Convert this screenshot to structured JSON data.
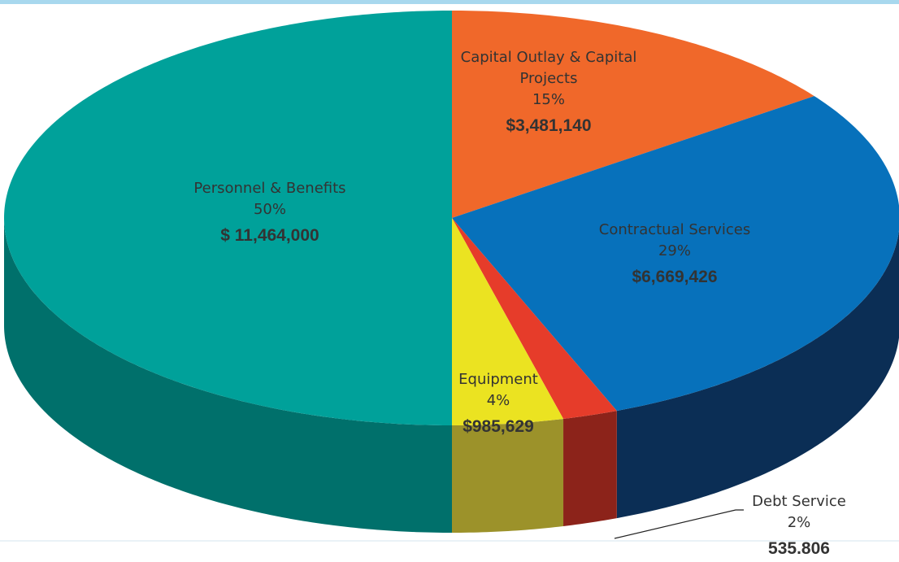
{
  "chart_data": {
    "type": "pie",
    "categories": [
      "Capital Outlay & Capital Projects",
      "Contractual Services",
      "Debt Service",
      "Equipment",
      "Personnel & Benefits"
    ],
    "values": [
      15,
      29,
      2,
      4,
      50
    ],
    "value_labels": [
      "15%",
      "29%",
      "2%",
      "4%",
      "50%"
    ],
    "amount_labels": [
      "$3,481,140",
      "$6,669,426",
      "535.806",
      "$985,629",
      "$ 11,464,000"
    ],
    "colors": [
      "#f0682a",
      "#0771bb",
      "#e63c2a",
      "#ebe321",
      "#00a19a"
    ],
    "side_colors": [
      "#b44d1f",
      "#0b2e55",
      "#8c231a",
      "#9c922a",
      "#00706b"
    ]
  }
}
